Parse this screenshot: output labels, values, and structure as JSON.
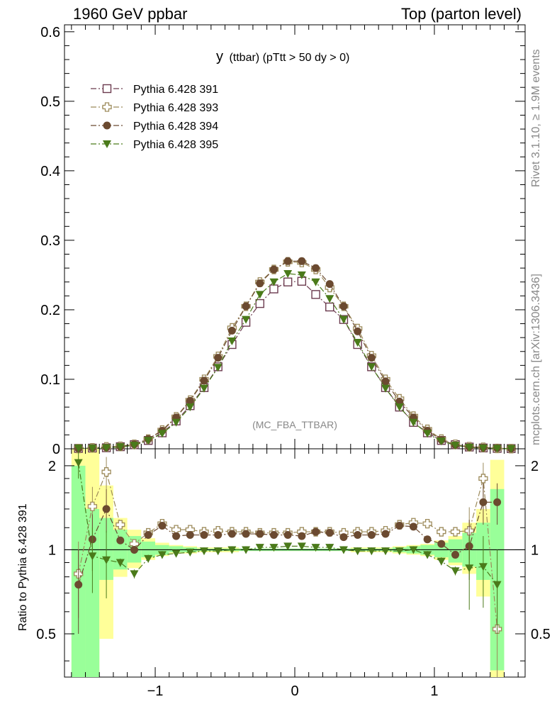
{
  "header": {
    "left": "1960 GeV ppbar",
    "right": "Top (parton level)"
  },
  "chart_data": [
    {
      "type": "line",
      "title": "y (ttbar) (pTtt > 50 dy > 0)",
      "title_main": "y",
      "title_sub": "(ttbar) (pTtt > 50 dy > 0)",
      "watermark": "(MC_FBA_TTBAR)",
      "side_text_1": "Rivet 3.1.10, ≥ 1.9M events",
      "side_text_2": "mcplots.cern.ch [arXiv:1306.3436]",
      "xlim": [
        -1.65,
        1.65
      ],
      "ylim": [
        0,
        0.61
      ],
      "x_ticks": [
        -1,
        0,
        1
      ],
      "x_tick_labels": [
        "−1",
        "0",
        "1"
      ],
      "y_ticks": [
        0,
        0.1,
        0.2,
        0.3,
        0.4,
        0.5,
        0.6
      ],
      "y_tick_labels": [
        "0",
        "0.1",
        "0.2",
        "0.3",
        "0.4",
        "0.5",
        "0.6"
      ],
      "legend_position": "top-left",
      "x": [
        -1.55,
        -1.45,
        -1.35,
        -1.25,
        -1.15,
        -1.05,
        -0.95,
        -0.85,
        -0.75,
        -0.65,
        -0.55,
        -0.45,
        -0.35,
        -0.25,
        -0.15,
        -0.05,
        0.05,
        0.15,
        0.25,
        0.35,
        0.45,
        0.55,
        0.65,
        0.75,
        0.85,
        0.95,
        1.05,
        1.15,
        1.25,
        1.35,
        1.45,
        1.55
      ],
      "series": [
        {
          "name": "Pythia 6.428 391",
          "color": "#6b3a4e",
          "marker": "open-square",
          "values": [
            0.0005,
            0.001,
            0.0015,
            0.003,
            0.006,
            0.012,
            0.023,
            0.04,
            0.062,
            0.088,
            0.118,
            0.15,
            0.182,
            0.209,
            0.23,
            0.24,
            0.241,
            0.222,
            0.204,
            0.186,
            0.15,
            0.118,
            0.088,
            0.06,
            0.038,
            0.023,
            0.012,
            0.006,
            0.0025,
            0.0012,
            0.0006,
            0.0003
          ]
        },
        {
          "name": "Pythia 6.428 393",
          "color": "#9c8a5a",
          "marker": "open-cross",
          "values": [
            0.0004,
            0.0014,
            0.0028,
            0.0035,
            0.0065,
            0.014,
            0.027,
            0.046,
            0.07,
            0.1,
            0.133,
            0.174,
            0.205,
            0.24,
            0.258,
            0.269,
            0.268,
            0.258,
            0.232,
            0.205,
            0.173,
            0.134,
            0.1,
            0.072,
            0.047,
            0.028,
            0.014,
            0.0065,
            0.003,
            0.0022,
            0.0005,
            0.0002
          ]
        },
        {
          "name": "Pythia 6.428 394",
          "color": "#6b4a30",
          "marker": "filled-circle",
          "values": [
            0.0004,
            0.0011,
            0.002,
            0.003,
            0.0065,
            0.014,
            0.026,
            0.045,
            0.069,
            0.098,
            0.131,
            0.17,
            0.205,
            0.238,
            0.258,
            0.27,
            0.27,
            0.26,
            0.237,
            0.205,
            0.169,
            0.131,
            0.097,
            0.068,
            0.045,
            0.026,
            0.013,
            0.0055,
            0.0025,
            0.0018,
            0.0009,
            0.0003
          ]
        },
        {
          "name": "Pythia 6.428 395",
          "color": "#4a7a1a",
          "marker": "filled-triangle-down",
          "values": [
            0.001,
            0.0009,
            0.0014,
            0.0028,
            0.005,
            0.012,
            0.022,
            0.038,
            0.06,
            0.087,
            0.117,
            0.155,
            0.186,
            0.222,
            0.24,
            0.252,
            0.25,
            0.24,
            0.216,
            0.186,
            0.153,
            0.118,
            0.087,
            0.06,
            0.038,
            0.022,
            0.011,
            0.005,
            0.002,
            0.001,
            0.0005,
            0.0002
          ]
        }
      ]
    },
    {
      "type": "line",
      "ylabel": "Ratio to Pythia 6.428 391",
      "ylim": [
        0.35,
        2.3
      ],
      "y_ticks": [
        0.5,
        1,
        2
      ],
      "y_tick_labels": [
        "0.5",
        "1",
        "2"
      ],
      "x": [
        -1.55,
        -1.45,
        -1.35,
        -1.25,
        -1.15,
        -1.05,
        -0.95,
        -0.85,
        -0.75,
        -0.65,
        -0.55,
        -0.45,
        -0.35,
        -0.25,
        -0.15,
        -0.05,
        0.05,
        0.15,
        0.25,
        0.35,
        0.45,
        0.55,
        0.65,
        0.75,
        0.85,
        0.95,
        1.05,
        1.15,
        1.25,
        1.35,
        1.45,
        1.55
      ],
      "bands": {
        "bin_edges": [
          -1.6,
          -1.5,
          -1.4,
          -1.3,
          -1.2,
          -1.1,
          -1.0,
          -0.9,
          -0.8,
          -0.7,
          -0.6,
          -0.5,
          -0.4,
          -0.3,
          -0.2,
          -0.1,
          0.0,
          0.1,
          0.2,
          0.3,
          0.4,
          0.5,
          0.6,
          0.7,
          0.8,
          0.9,
          1.0,
          1.1,
          1.2,
          1.3,
          1.4,
          1.5,
          1.6
        ],
        "yellow_low": [
          0.35,
          0.35,
          0.48,
          0.8,
          0.86,
          0.92,
          0.95,
          0.97,
          0.97,
          0.98,
          0.98,
          0.98,
          0.99,
          0.99,
          0.99,
          0.99,
          0.99,
          0.99,
          0.99,
          0.99,
          0.98,
          0.98,
          0.98,
          0.97,
          0.96,
          0.95,
          0.92,
          0.88,
          0.82,
          0.68,
          0.35,
          0.35
        ],
        "yellow_high": [
          2.3,
          2.3,
          1.7,
          1.3,
          1.18,
          1.1,
          1.06,
          1.04,
          1.03,
          1.02,
          1.02,
          1.02,
          1.01,
          1.01,
          1.01,
          1.01,
          1.01,
          1.01,
          1.01,
          1.01,
          1.02,
          1.02,
          1.02,
          1.03,
          1.04,
          1.05,
          1.08,
          1.12,
          1.25,
          1.4,
          2.1,
          0.35
        ],
        "green_low": [
          0.35,
          0.35,
          0.78,
          0.85,
          0.9,
          0.94,
          0.96,
          0.98,
          0.98,
          0.99,
          0.99,
          0.99,
          0.99,
          0.99,
          0.99,
          0.99,
          0.99,
          0.99,
          0.99,
          0.99,
          0.99,
          0.99,
          0.99,
          0.98,
          0.97,
          0.96,
          0.94,
          0.9,
          0.87,
          0.78,
          0.37,
          0.35
        ],
        "green_high": [
          2.0,
          1.4,
          1.3,
          1.18,
          1.12,
          1.07,
          1.04,
          1.03,
          1.02,
          1.01,
          1.01,
          1.01,
          1.01,
          1.01,
          1.01,
          1.01,
          1.01,
          1.01,
          1.01,
          1.01,
          1.01,
          1.01,
          1.01,
          1.02,
          1.03,
          1.04,
          1.06,
          1.09,
          1.15,
          1.25,
          1.65,
          0.35
        ]
      },
      "series": [
        {
          "name": "Pythia 6.428 393",
          "values": [
            0.82,
            1.43,
            1.9,
            1.23,
            1.05,
            1.15,
            1.24,
            1.18,
            1.18,
            1.16,
            1.17,
            1.16,
            1.16,
            1.15,
            1.15,
            1.15,
            1.16,
            1.16,
            1.16,
            1.15,
            1.16,
            1.16,
            1.17,
            1.23,
            1.25,
            1.24,
            1.16,
            1.16,
            1.17,
            1.8,
            0.52,
            0.52
          ]
        },
        {
          "name": "Pythia 6.428 394",
          "values": [
            0.75,
            1.09,
            1.4,
            1.08,
            1.0,
            1.13,
            1.22,
            1.12,
            1.13,
            1.13,
            1.13,
            1.14,
            1.14,
            1.14,
            1.13,
            1.13,
            1.12,
            1.16,
            1.15,
            1.11,
            1.13,
            1.13,
            1.14,
            1.22,
            1.21,
            1.09,
            1.05,
            0.96,
            1.03,
            1.48,
            1.48,
            1.48
          ]
        },
        {
          "name": "Pythia 6.428 395",
          "values": [
            2.05,
            0.95,
            0.92,
            0.9,
            0.82,
            0.93,
            0.96,
            0.97,
            0.98,
            0.99,
            0.99,
            1.0,
            1.0,
            1.02,
            1.02,
            1.03,
            1.03,
            1.02,
            1.02,
            1.0,
            0.99,
            0.99,
            0.99,
            0.99,
            1.0,
            0.96,
            0.91,
            0.84,
            0.86,
            0.87,
            0.75,
            0.75
          ]
        }
      ]
    }
  ]
}
